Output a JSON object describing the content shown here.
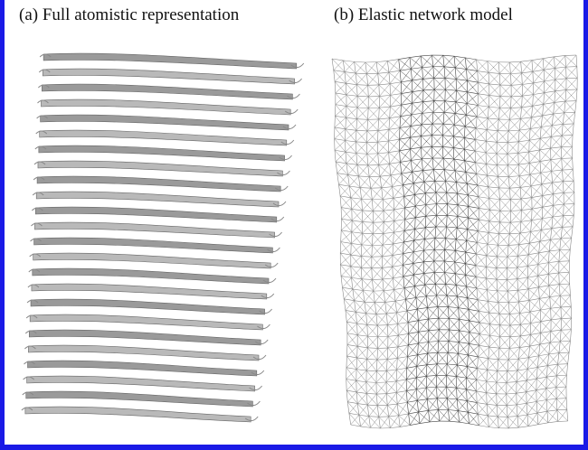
{
  "panels": [
    {
      "label": "(a) Full atomistic representation"
    },
    {
      "label": "(b) Elastic network model"
    }
  ]
}
